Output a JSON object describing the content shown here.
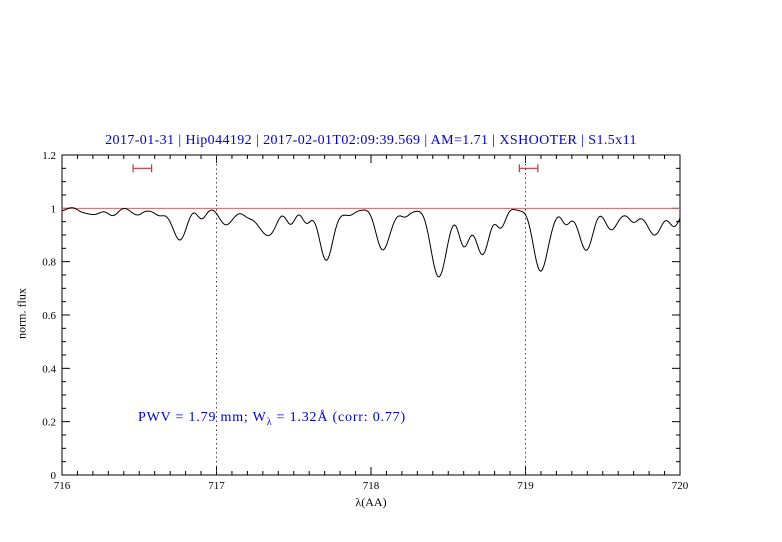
{
  "header": {
    "title": "2017-01-31 | Hip044192 | 2017-02-01T02:09:39.569 | AM=1.71 | XSHOOTER | S1.5x11"
  },
  "annotation": {
    "prefix": "PWV = 1.79 mm; W",
    "sub": "λ",
    "suffix": " = 1.32Å (corr: 0.77)"
  },
  "chart_data": {
    "type": "line",
    "title": "2017-01-31 | Hip044192 | 2017-02-01T02:09:39.569 | AM=1.71 | XSHOOTER | S1.5x11",
    "xlabel": "λ(AA)",
    "ylabel": "norm. flux",
    "xlim": [
      716,
      720
    ],
    "ylim": [
      0,
      1.2
    ],
    "xticks": [
      716,
      717,
      718,
      719,
      720
    ],
    "xtick_labels": [
      "716",
      "717",
      "718",
      "719",
      "720"
    ],
    "yticks": [
      0,
      0.2,
      0.4,
      0.6,
      0.8,
      1,
      1.2
    ],
    "ytick_labels": [
      "0",
      "0.2",
      "0.4",
      "0.6",
      "0.8",
      "1",
      "1.2"
    ],
    "x_minor_step": 0.1,
    "y_minor_step": 0.05,
    "grid": false,
    "continuum_level": 1.0,
    "dotted_guides_x": [
      717,
      719
    ],
    "band_markers": [
      {
        "x1": 716.46,
        "x2": 716.58,
        "y": 1.15
      },
      {
        "x1": 718.96,
        "x2": 719.08,
        "y": 1.15
      }
    ],
    "colors": {
      "spectrum": "#000000",
      "continuum": "#cc6666",
      "markers": "#cc3333",
      "guides": "#444444",
      "title": "#0000cc",
      "annotation": "#0000cc"
    },
    "sample_step": 0.01,
    "wiggle": [
      [
        0.004,
        55.3,
        0.0
      ],
      [
        0.003,
        23.7,
        1.3
      ]
    ],
    "absorption_lines": [
      {
        "center": 716.18,
        "depth": 0.02,
        "sigma": 0.04
      },
      {
        "center": 716.32,
        "depth": 0.025,
        "sigma": 0.035
      },
      {
        "center": 716.5,
        "depth": 0.02,
        "sigma": 0.03
      },
      {
        "center": 716.63,
        "depth": 0.03,
        "sigma": 0.03
      },
      {
        "center": 716.76,
        "depth": 0.115,
        "sigma": 0.042
      },
      {
        "center": 716.9,
        "depth": 0.035,
        "sigma": 0.03
      },
      {
        "center": 717.07,
        "depth": 0.06,
        "sigma": 0.04
      },
      {
        "center": 717.2,
        "depth": 0.03,
        "sigma": 0.03
      },
      {
        "center": 717.33,
        "depth": 0.1,
        "sigma": 0.055
      },
      {
        "center": 717.48,
        "depth": 0.05,
        "sigma": 0.03
      },
      {
        "center": 717.58,
        "depth": 0.045,
        "sigma": 0.028
      },
      {
        "center": 717.71,
        "depth": 0.19,
        "sigma": 0.045
      },
      {
        "center": 717.87,
        "depth": 0.025,
        "sigma": 0.03
      },
      {
        "center": 718.08,
        "depth": 0.15,
        "sigma": 0.045
      },
      {
        "center": 718.22,
        "depth": 0.035,
        "sigma": 0.028
      },
      {
        "center": 718.44,
        "depth": 0.26,
        "sigma": 0.048
      },
      {
        "center": 718.6,
        "depth": 0.13,
        "sigma": 0.035
      },
      {
        "center": 718.72,
        "depth": 0.17,
        "sigma": 0.045
      },
      {
        "center": 718.84,
        "depth": 0.06,
        "sigma": 0.03
      },
      {
        "center": 719.1,
        "depth": 0.23,
        "sigma": 0.048
      },
      {
        "center": 719.26,
        "depth": 0.06,
        "sigma": 0.028
      },
      {
        "center": 719.39,
        "depth": 0.15,
        "sigma": 0.045
      },
      {
        "center": 719.56,
        "depth": 0.08,
        "sigma": 0.04
      },
      {
        "center": 719.7,
        "depth": 0.05,
        "sigma": 0.03
      },
      {
        "center": 719.83,
        "depth": 0.1,
        "sigma": 0.045
      },
      {
        "center": 719.96,
        "depth": 0.06,
        "sigma": 0.035
      }
    ]
  }
}
